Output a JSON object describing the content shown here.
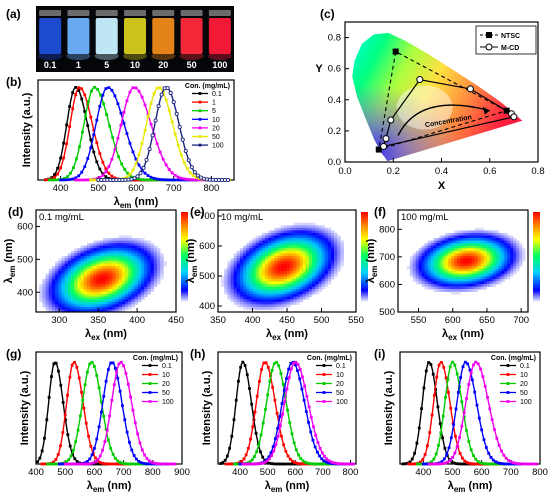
{
  "colors": {
    "black": "#000000",
    "red": "#ff0000",
    "green": "#00cc00",
    "blue": "#0000ff",
    "magenta": "#ee00ee",
    "yellow": "#e8e800",
    "navy": "#1a237e"
  },
  "photo": {
    "label": "(a)",
    "vial_labels": [
      "0.1",
      "1",
      "5",
      "10",
      "20",
      "50",
      "100"
    ],
    "vial_colors": [
      "#1e4fd8",
      "#6fb2ff",
      "#c9f2ff",
      "#d6cc1c",
      "#f08a1a",
      "#ff2a3c",
      "#ff1a3a"
    ]
  },
  "chart_data": [
    {
      "id": "b",
      "label": "(b)",
      "type": "line",
      "xlabel": "λem (nm)",
      "xlabel_main": "λ",
      "xlabel_sub": "em",
      "xlabel_unit": " (nm)",
      "ylabel": "Intensity (a.u.)",
      "xlim": [
        340,
        860
      ],
      "ylim": [
        0,
        1.08
      ],
      "xticks": [
        "400",
        "500",
        "600",
        "700",
        "800"
      ],
      "xtick_values": [
        400,
        500,
        600,
        700,
        800
      ],
      "legend_title": "Con. (mg/mL)",
      "legend_position": "top-right",
      "series": [
        {
          "name": "0.1",
          "color": "#000000",
          "peak": 440,
          "wl": 38,
          "wr": 50,
          "start": 360,
          "end": 640
        },
        {
          "name": "1",
          "color": "#ff0000",
          "peak": 450,
          "wl": 40,
          "wr": 55,
          "start": 360,
          "end": 660
        },
        {
          "name": "5",
          "color": "#00cc00",
          "peak": 490,
          "wl": 45,
          "wr": 62,
          "start": 370,
          "end": 700
        },
        {
          "name": "10",
          "color": "#0000ff",
          "peak": 525,
          "wl": 50,
          "wr": 70,
          "start": 400,
          "end": 760
        },
        {
          "name": "20",
          "color": "#ee00ee",
          "peak": 595,
          "wl": 55,
          "wr": 72,
          "start": 440,
          "end": 840
        },
        {
          "name": "50",
          "color": "#e8e800",
          "peak": 660,
          "wl": 52,
          "wr": 60,
          "start": 480,
          "end": 850
        },
        {
          "name": "100",
          "color": "#1a237e",
          "peak": 680,
          "wl": 48,
          "wr": 55,
          "start": 500,
          "end": 850
        }
      ]
    },
    {
      "id": "c",
      "label": "(c)",
      "type": "scatter",
      "xlabel": "X",
      "ylabel": "Y",
      "xlim": [
        0,
        0.8
      ],
      "ylim": [
        0,
        0.9
      ],
      "xticks": [
        "0.0",
        "0.2",
        "0.4",
        "0.6",
        "0.8"
      ],
      "xtick_values": [
        0,
        0.2,
        0.4,
        0.6,
        0.8
      ],
      "yticks": [
        "0.0",
        "0.2",
        "0.4",
        "0.6",
        "0.8"
      ],
      "ytick_values": [
        0,
        0.2,
        0.4,
        0.6,
        0.8
      ],
      "legend_position": "top-right",
      "annotation": "Concentration",
      "ntsc": {
        "name": "NTSC",
        "points": [
          [
            0.67,
            0.33
          ],
          [
            0.21,
            0.71
          ],
          [
            0.14,
            0.08
          ]
        ]
      },
      "mcd": {
        "name": "M-CD",
        "points": [
          [
            0.16,
            0.1
          ],
          [
            0.17,
            0.15
          ],
          [
            0.19,
            0.27
          ],
          [
            0.31,
            0.53
          ],
          [
            0.52,
            0.47
          ],
          [
            0.69,
            0.31
          ],
          [
            0.7,
            0.29
          ]
        ]
      }
    },
    {
      "id": "d",
      "label": "(d)",
      "type": "heatmap",
      "annotation": "0.1 mg/mL",
      "xlabel_main": "λ",
      "xlabel_sub": "ex",
      "xlabel_unit": " (nm)",
      "ylabel_main": "λ",
      "ylabel_sub": "em",
      "ylabel_unit": " (nm)",
      "xlim": [
        270,
        450
      ],
      "ylim": [
        340,
        650
      ],
      "xticks": [
        "300",
        "350",
        "400",
        "450"
      ],
      "xtick_values": [
        300,
        350,
        400,
        450
      ],
      "yticks": [
        "400",
        "500",
        "600"
      ],
      "ytick_values": [
        400,
        500,
        600
      ],
      "peak": [
        355,
        440
      ],
      "spread": [
        50,
        80
      ],
      "tilt": -0.35
    },
    {
      "id": "e",
      "label": "(e)",
      "type": "heatmap",
      "annotation": "10 mg/mL",
      "xlabel_main": "λ",
      "xlabel_sub": "ex",
      "xlabel_unit": " (nm)",
      "ylabel_main": "λ",
      "ylabel_sub": "em",
      "ylabel_unit": " (nm)",
      "xlim": [
        350,
        550
      ],
      "ylim": [
        380,
        720
      ],
      "xticks": [
        "350",
        "400",
        "450",
        "500",
        "550"
      ],
      "xtick_values": [
        350,
        400,
        450,
        500,
        550
      ],
      "yticks": [
        "400",
        "500",
        "600",
        "700"
      ],
      "ytick_values": [
        400,
        500,
        600,
        700
      ],
      "peak": [
        445,
        530
      ],
      "spread": [
        55,
        90
      ],
      "tilt": -0.35
    },
    {
      "id": "f",
      "label": "(f)",
      "type": "heatmap",
      "annotation": "100 mg/mL",
      "xlabel_main": "λ",
      "xlabel_sub": "ex",
      "xlabel_unit": " (nm)",
      "ylabel_main": "λ",
      "ylabel_sub": "em",
      "ylabel_unit": " (nm)",
      "xlim": [
        520,
        710
      ],
      "ylim": [
        500,
        870
      ],
      "xticks": [
        "550",
        "600",
        "650",
        "700"
      ],
      "xtick_values": [
        550,
        600,
        650,
        700
      ],
      "yticks": [
        "500",
        "600",
        "700",
        "800"
      ],
      "ytick_values": [
        500,
        600,
        700,
        800
      ],
      "peak": [
        620,
        685
      ],
      "spread": [
        55,
        75
      ],
      "tilt": -0.2
    },
    {
      "id": "g",
      "label": "(g)",
      "type": "line",
      "xlabel_main": "λ",
      "xlabel_sub": "em",
      "xlabel_unit": " (nm)",
      "ylabel": "Intensity (a.u.)",
      "xlim": [
        400,
        900
      ],
      "ylim": [
        0,
        1.1
      ],
      "xticks": [
        "400",
        "500",
        "600",
        "700",
        "800",
        "900"
      ],
      "xtick_values": [
        400,
        500,
        600,
        700,
        800,
        900
      ],
      "legend_title": "Con. (mg/mL)",
      "legend_position": "top-right",
      "series": [
        {
          "name": "0.1",
          "color": "#000000",
          "peak": 465,
          "wl": 35,
          "wr": 45,
          "start": 405,
          "end": 650
        },
        {
          "name": "10",
          "color": "#ff0000",
          "peak": 530,
          "wl": 40,
          "wr": 50,
          "start": 420,
          "end": 720
        },
        {
          "name": "20",
          "color": "#00cc00",
          "peak": 590,
          "wl": 50,
          "wr": 55,
          "start": 440,
          "end": 790
        },
        {
          "name": "50",
          "color": "#0000ff",
          "peak": 660,
          "wl": 50,
          "wr": 55,
          "start": 480,
          "end": 850
        },
        {
          "name": "100",
          "color": "#ee00ee",
          "peak": 690,
          "wl": 50,
          "wr": 60,
          "start": 500,
          "end": 880
        }
      ]
    },
    {
      "id": "h",
      "label": "(h)",
      "type": "line",
      "xlabel_main": "λ",
      "xlabel_sub": "em",
      "xlabel_unit": " (nm)",
      "ylabel": "Intensity (a.u.)",
      "xlim": [
        320,
        820
      ],
      "ylim": [
        0,
        1.1
      ],
      "xticks": [
        "400",
        "500",
        "600",
        "700",
        "800"
      ],
      "xtick_values": [
        400,
        500,
        600,
        700,
        800
      ],
      "legend_title": "Con. (mg/mL)",
      "legend_position": "top-right",
      "series": [
        {
          "name": "0.1",
          "color": "#000000",
          "peak": 410,
          "wl": 40,
          "wr": 50,
          "start": 330,
          "end": 620
        },
        {
          "name": "10",
          "color": "#ff0000",
          "peak": 490,
          "wl": 50,
          "wr": 60,
          "start": 350,
          "end": 720
        },
        {
          "name": "20",
          "color": "#00cc00",
          "peak": 530,
          "wl": 55,
          "wr": 60,
          "start": 380,
          "end": 760
        },
        {
          "name": "50",
          "color": "#0000ff",
          "peak": 590,
          "wl": 60,
          "wr": 70,
          "start": 400,
          "end": 810
        },
        {
          "name": "100",
          "color": "#ee00ee",
          "peak": 600,
          "wl": 62,
          "wr": 75,
          "start": 410,
          "end": 815
        }
      ]
    },
    {
      "id": "i",
      "label": "(i)",
      "type": "line",
      "xlabel_main": "λ",
      "xlabel_sub": "em",
      "xlabel_unit": " (nm)",
      "ylabel": "Intensity (a.u.)",
      "xlim": [
        320,
        800
      ],
      "ylim": [
        0,
        1.1
      ],
      "xticks": [
        "400",
        "500",
        "600",
        "700",
        "800"
      ],
      "xtick_values": [
        400,
        500,
        600,
        700,
        800
      ],
      "legend_title": "Con. (mg/mL)",
      "legend_position": "top-right",
      "series": [
        {
          "name": "0.1",
          "color": "#000000",
          "peak": 420,
          "wl": 38,
          "wr": 45,
          "start": 330,
          "end": 620
        },
        {
          "name": "10",
          "color": "#ff0000",
          "peak": 460,
          "wl": 40,
          "wr": 50,
          "start": 350,
          "end": 660
        },
        {
          "name": "20",
          "color": "#00cc00",
          "peak": 500,
          "wl": 42,
          "wr": 52,
          "start": 380,
          "end": 690
        },
        {
          "name": "50",
          "color": "#0000ff",
          "peak": 545,
          "wl": 48,
          "wr": 60,
          "start": 400,
          "end": 740
        },
        {
          "name": "100",
          "color": "#ee00ee",
          "peak": 580,
          "wl": 55,
          "wr": 70,
          "start": 420,
          "end": 790
        }
      ]
    }
  ]
}
